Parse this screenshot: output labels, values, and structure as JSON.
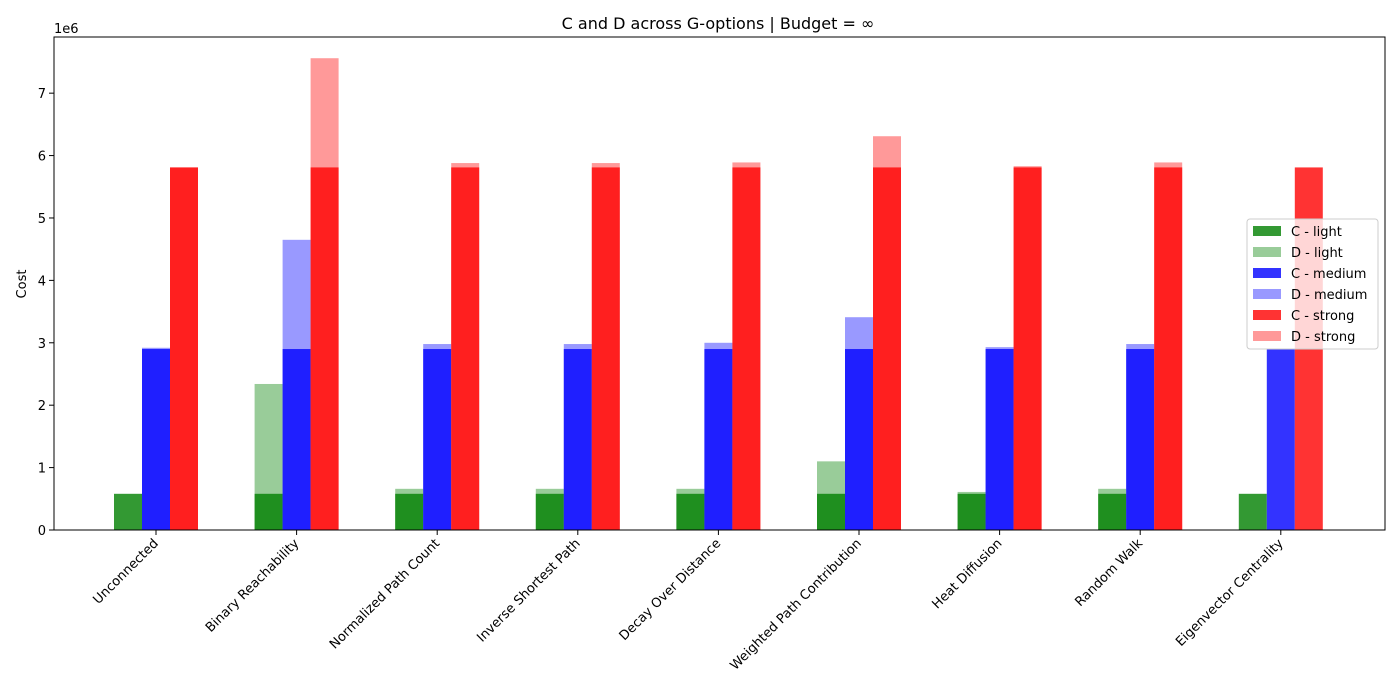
{
  "chart_data": {
    "type": "bar",
    "title": "C and D across G-options | Budget = ∞",
    "xlabel": "",
    "ylabel": "Cost",
    "y_offset_label": "1e6",
    "ylim": [
      0,
      7900000
    ],
    "yticks": [
      0,
      1000000,
      2000000,
      3000000,
      4000000,
      5000000,
      6000000,
      7000000
    ],
    "ytick_labels": [
      "0",
      "1",
      "2",
      "3",
      "4",
      "5",
      "6",
      "7"
    ],
    "grid": false,
    "legend_position": "center-right",
    "categories": [
      "Unconnected",
      "Binary Reachability",
      "Normalized Path Count",
      "Inverse Shortest Path",
      "Decay Over Distance",
      "Weighted Path Contribution",
      "Heat Diffusion",
      "Random Walk",
      "Eigenvector Centrality"
    ],
    "groups": [
      {
        "label": "light",
        "color": "#008000",
        "c_name": "C - light",
        "d_name": "D - light",
        "C": [
          580000,
          580000,
          580000,
          580000,
          580000,
          580000,
          580000,
          580000,
          580000
        ],
        "D": [
          0,
          2340000,
          660000,
          660000,
          660000,
          1100000,
          610000,
          660000,
          0
        ]
      },
      {
        "label": "medium",
        "color": "#0000ff",
        "c_name": "C - medium",
        "d_name": "D - medium",
        "C": [
          2900000,
          2900000,
          2900000,
          2900000,
          2900000,
          2900000,
          2900000,
          2900000,
          2900000
        ],
        "D": [
          2920000,
          4650000,
          2980000,
          2980000,
          3000000,
          3410000,
          2930000,
          2980000,
          0
        ]
      },
      {
        "label": "strong",
        "color": "#ff0000",
        "c_name": "C - strong",
        "d_name": "D - strong",
        "C": [
          5810000,
          5810000,
          5810000,
          5810000,
          5810000,
          5810000,
          5810000,
          5810000,
          5810000
        ],
        "D": [
          5810000,
          7560000,
          5880000,
          5880000,
          5890000,
          6310000,
          5830000,
          5890000,
          0
        ]
      }
    ]
  }
}
